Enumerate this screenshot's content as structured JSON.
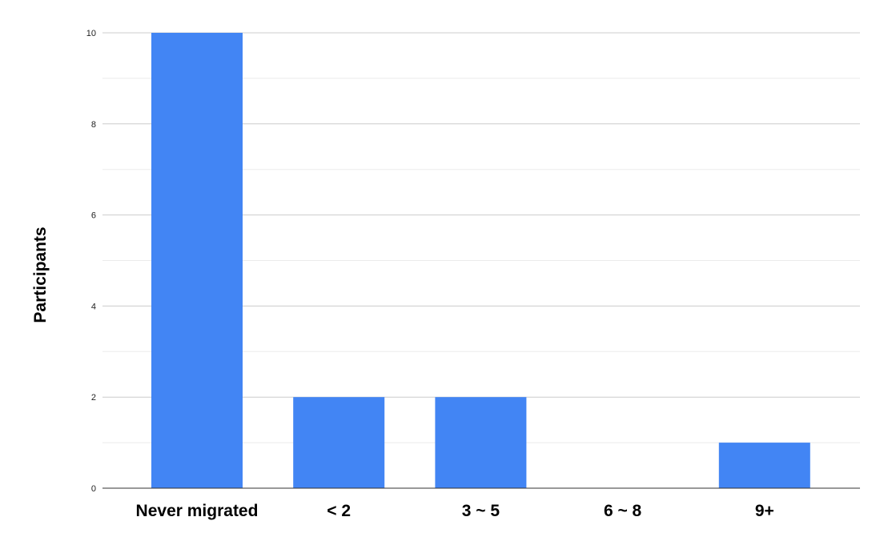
{
  "chart_data": {
    "type": "bar",
    "title": "",
    "xlabel": "",
    "ylabel": "Participants",
    "categories": [
      "Never migrated",
      "< 2",
      "3 ~ 5",
      "6 ~ 8",
      "9+"
    ],
    "values": [
      10,
      2,
      2,
      0,
      1
    ],
    "ylim": [
      0,
      10
    ],
    "yticks": [
      "0",
      "2",
      "4",
      "6",
      "8",
      "10"
    ],
    "grid": true,
    "legend": "none",
    "colors": {
      "bar": "#4285F4",
      "major_grid": "#cccccc",
      "minor_grid": "#ebebeb",
      "baseline": "#333333"
    }
  }
}
